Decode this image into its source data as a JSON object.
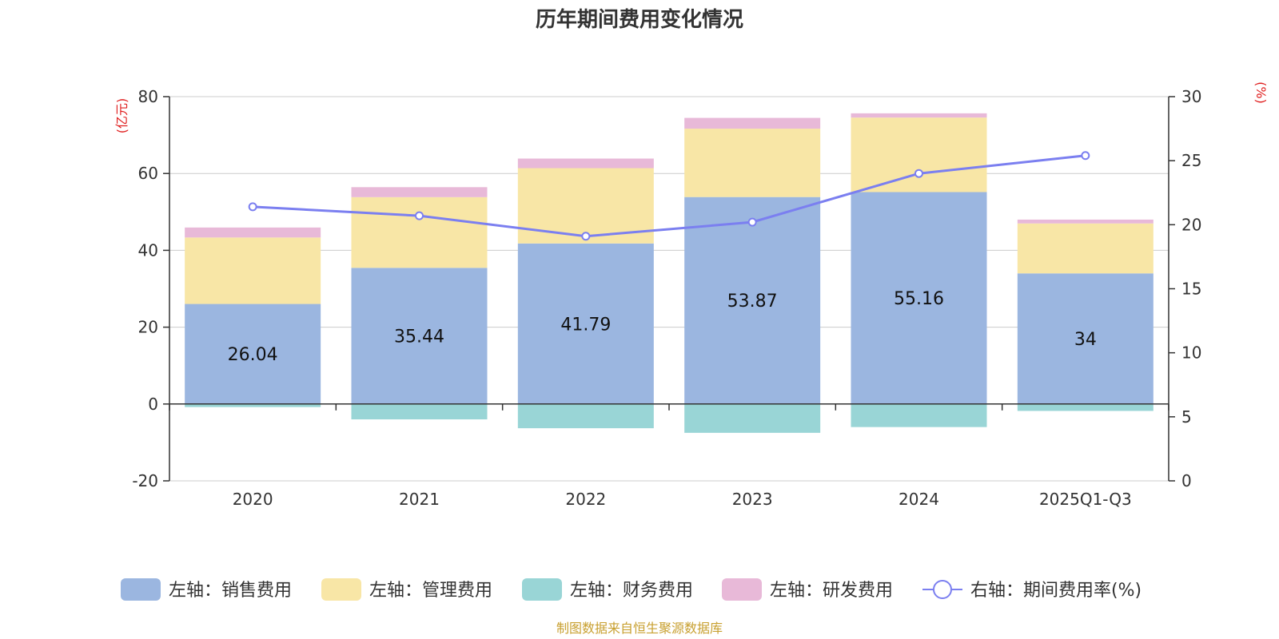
{
  "chart_data": {
    "type": "bar",
    "title": "历年期间费用变化情况",
    "categories": [
      "2020",
      "2021",
      "2022",
      "2023",
      "2024",
      "2025Q1-Q3"
    ],
    "left_axis": {
      "unit": "(亿元)",
      "ylim": [
        -20,
        80
      ],
      "ticks": [
        80,
        60,
        40,
        20,
        0,
        -20
      ]
    },
    "right_axis": {
      "unit": "(%)",
      "ylim": [
        0,
        30
      ],
      "ticks": [
        30,
        25,
        20,
        15,
        10,
        5,
        0
      ]
    },
    "series": [
      {
        "name": "左轴：销售费用",
        "axis": "left",
        "kind": "bar",
        "color": "#9bb6e0",
        "values": [
          26.04,
          35.44,
          41.79,
          53.87,
          55.16,
          34
        ]
      },
      {
        "name": "左轴：管理费用",
        "axis": "left",
        "kind": "bar",
        "color": "#f8e6a6",
        "values": [
          17.3,
          18.4,
          19.6,
          17.8,
          19.4,
          13.0
        ]
      },
      {
        "name": "左轴：财务费用",
        "axis": "left",
        "kind": "bar",
        "color": "#99d5d6",
        "values": [
          -0.8,
          -4.0,
          -6.3,
          -7.5,
          -6.0,
          -1.8
        ]
      },
      {
        "name": "左轴：研发费用",
        "axis": "left",
        "kind": "bar",
        "color": "#e8b9d8",
        "values": [
          2.6,
          2.6,
          2.5,
          2.8,
          1.1,
          1.0
        ]
      },
      {
        "name": "右轴：期间费用率(%)",
        "axis": "right",
        "kind": "line",
        "color": "#7b7ff0",
        "values": [
          21.4,
          20.7,
          19.1,
          20.2,
          24.0,
          25.4
        ]
      }
    ],
    "bar_labels": [
      "26.04",
      "35.44",
      "41.79",
      "53.87",
      "55.16",
      "34"
    ],
    "legend_position": "bottom",
    "grid": true
  },
  "colors": {
    "unit_label": "#e02020",
    "source_text": "#c8a030",
    "axis": "#333333",
    "grid": "#cccccc"
  },
  "footer": {
    "source": "制图数据来自恒生聚源数据库"
  }
}
